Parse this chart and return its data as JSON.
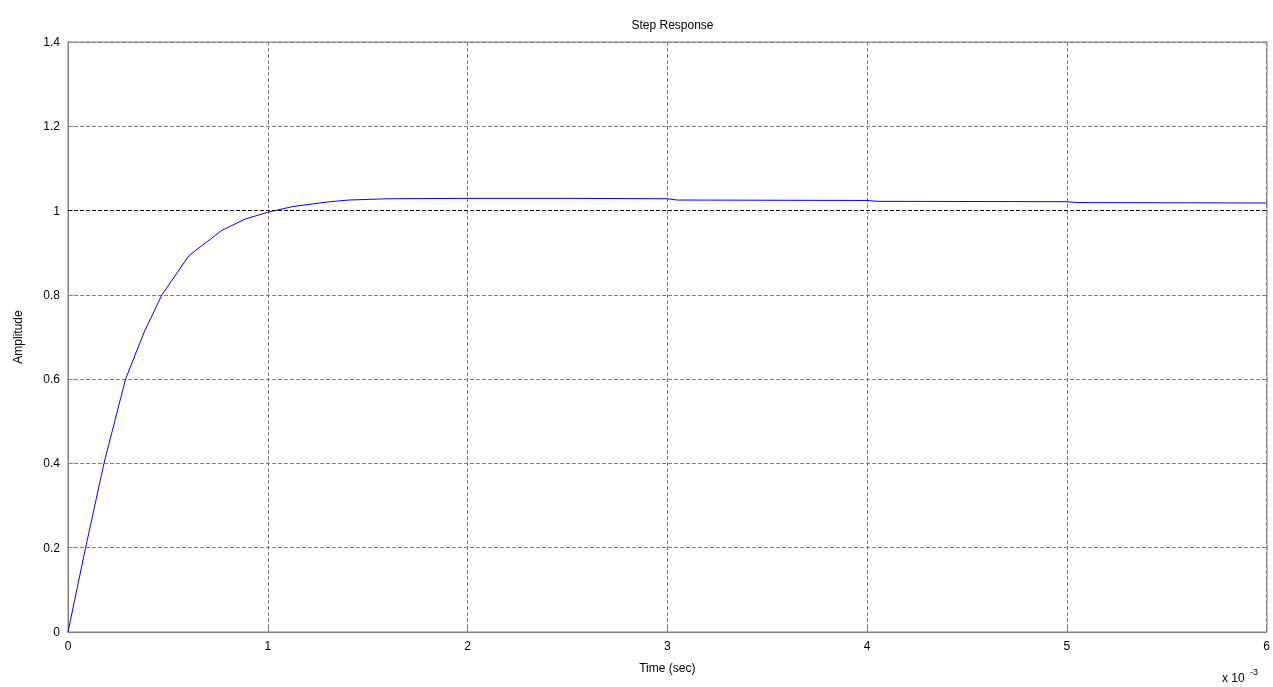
{
  "chart_data": {
    "type": "line",
    "title": "Step Response",
    "xlabel": "Time (sec)",
    "ylabel": "Amplitude",
    "annotations": [
      "x 10$^{-3}$"
    ],
    "x": [
      0,
      0.088,
      0.18,
      0.288,
      0.38,
      0.47,
      0.605,
      0.77,
      0.888,
      1.0,
      1.12,
      1.29,
      1.405,
      1.6,
      2.0,
      2.5,
      3.0,
      3.05,
      4.0,
      4.05,
      5.0,
      5.05,
      6.0
    ],
    "series": [
      {
        "color": "#0000ff",
        "values": [
          0,
          0.2,
          0.4,
          0.6,
          0.71,
          0.8,
          0.893,
          0.953,
          0.98,
          0.996,
          1.009,
          1.02,
          1.025,
          1.028,
          1.029,
          1.029,
          1.028,
          1.025,
          1.024,
          1.022,
          1.021,
          1.019,
          1.018
        ]
      }
    ],
    "xlim": [
      0,
      6
    ],
    "xticks": [
      0,
      1,
      2,
      3,
      4,
      5,
      6
    ],
    "ylim": [
      0,
      1.4
    ],
    "yticks": [
      0,
      0.2,
      0.4,
      0.6,
      0.8,
      1,
      1.2,
      1.4
    ],
    "grid": true,
    "marker": "none",
    "line_style": "solid",
    "ref_lines": [
      {
        "axis": "y",
        "value": 1,
        "label": null,
        "color": "#000000",
        "line_style": "dashed"
      }
    ]
  }
}
